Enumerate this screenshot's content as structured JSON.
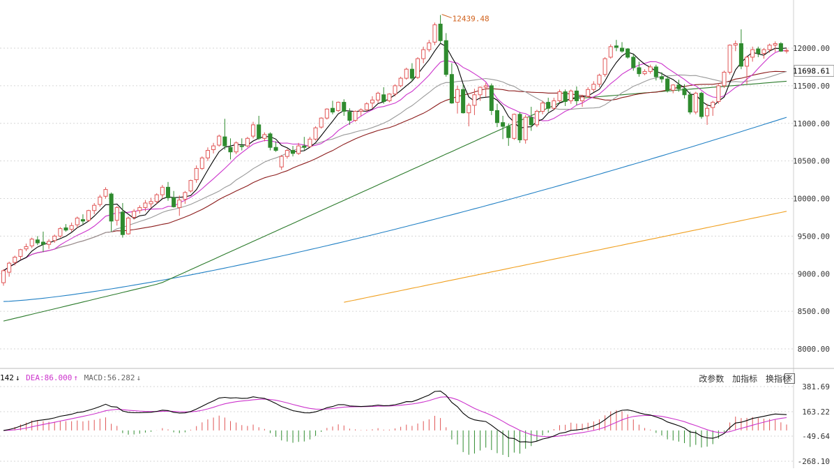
{
  "chart_data": [
    {
      "type": "candlestick",
      "title": "",
      "ylim": [
        7800,
        12500
      ],
      "y_ticks": [
        "12000.00",
        "11500.00",
        "11000.00",
        "10500.00",
        "10000.00",
        "9500.00",
        "9000.00",
        "8500.00",
        "8000.00"
      ],
      "current_price_label": "11698.61",
      "peak_annotation": "12439.48",
      "grid": true,
      "colors": {
        "up": "#e05555",
        "down": "#2e8b2e",
        "ma5": "#000000",
        "ma10": "#cc33cc",
        "ma20": "#999999",
        "ma30": "#8b1a1a",
        "ma60": "#2a7a2a",
        "ma120": "#1f7fc4",
        "ma250": "#f0a020"
      },
      "candles_ohlc": [
        [
          8880,
          9060,
          8840,
          9040
        ],
        [
          9020,
          9160,
          8960,
          9140
        ],
        [
          9150,
          9240,
          9110,
          9220
        ],
        [
          9230,
          9330,
          9190,
          9320
        ],
        [
          9330,
          9400,
          9300,
          9360
        ],
        [
          9370,
          9480,
          9340,
          9460
        ],
        [
          9450,
          9500,
          9380,
          9410
        ],
        [
          9420,
          9560,
          9290,
          9390
        ],
        [
          9390,
          9460,
          9330,
          9430
        ],
        [
          9440,
          9520,
          9410,
          9500
        ],
        [
          9500,
          9620,
          9480,
          9600
        ],
        [
          9610,
          9660,
          9560,
          9580
        ],
        [
          9590,
          9680,
          9560,
          9640
        ],
        [
          9650,
          9760,
          9610,
          9740
        ],
        [
          9720,
          9790,
          9660,
          9700
        ],
        [
          9710,
          9850,
          9690,
          9840
        ],
        [
          9840,
          9940,
          9790,
          9910
        ],
        [
          9920,
          10050,
          9890,
          10020
        ],
        [
          10030,
          10150,
          10000,
          10120
        ],
        [
          10060,
          10080,
          9560,
          9700
        ],
        [
          9710,
          9900,
          9640,
          9880
        ],
        [
          9820,
          9940,
          9480,
          9520
        ],
        [
          9530,
          9760,
          9520,
          9740
        ],
        [
          9750,
          9860,
          9720,
          9830
        ],
        [
          9840,
          9910,
          9800,
          9880
        ],
        [
          9880,
          9980,
          9830,
          9940
        ],
        [
          9930,
          10010,
          9880,
          9960
        ],
        [
          9960,
          10070,
          9930,
          10050
        ],
        [
          10050,
          10180,
          10000,
          10150
        ],
        [
          10150,
          10220,
          9970,
          10010
        ],
        [
          10010,
          10100,
          9880,
          9890
        ],
        [
          9880,
          10040,
          9770,
          9980
        ],
        [
          9990,
          10100,
          9930,
          10080
        ],
        [
          10100,
          10250,
          10080,
          10240
        ],
        [
          10250,
          10440,
          10210,
          10400
        ],
        [
          10400,
          10560,
          10380,
          10540
        ],
        [
          10540,
          10680,
          10500,
          10640
        ],
        [
          10650,
          10740,
          10600,
          10700
        ],
        [
          10710,
          10850,
          10690,
          10830
        ],
        [
          10820,
          11060,
          10650,
          10700
        ],
        [
          10680,
          10800,
          10520,
          10620
        ],
        [
          10620,
          10760,
          10590,
          10740
        ],
        [
          10700,
          10800,
          10640,
          10690
        ],
        [
          10700,
          10820,
          10680,
          10800
        ],
        [
          10830,
          11020,
          10800,
          10980
        ],
        [
          10980,
          11100,
          10780,
          10800
        ],
        [
          10800,
          10880,
          10760,
          10850
        ],
        [
          10860,
          10880,
          10640,
          10680
        ],
        [
          10680,
          10760,
          10620,
          10640
        ],
        [
          10420,
          10580,
          10380,
          10560
        ],
        [
          10560,
          10660,
          10530,
          10640
        ],
        [
          10640,
          10700,
          10560,
          10600
        ],
        [
          10600,
          10740,
          10580,
          10700
        ],
        [
          10700,
          10820,
          10640,
          10680
        ],
        [
          10690,
          10820,
          10680,
          10790
        ],
        [
          10790,
          10960,
          10770,
          10940
        ],
        [
          10950,
          11080,
          10930,
          11070
        ],
        [
          11070,
          11200,
          11050,
          11190
        ],
        [
          11200,
          11300,
          11120,
          11150
        ],
        [
          11170,
          11290,
          11150,
          11280
        ],
        [
          11280,
          11320,
          11100,
          11160
        ],
        [
          11150,
          11200,
          10980,
          11040
        ],
        [
          11040,
          11170,
          11020,
          11160
        ],
        [
          11160,
          11200,
          11100,
          11180
        ],
        [
          11180,
          11280,
          11160,
          11260
        ],
        [
          11270,
          11360,
          11200,
          11310
        ],
        [
          11310,
          11420,
          11270,
          11400
        ],
        [
          11380,
          11480,
          11260,
          11290
        ],
        [
          11300,
          11400,
          11280,
          11390
        ],
        [
          11390,
          11520,
          11360,
          11500
        ],
        [
          11500,
          11620,
          11480,
          11600
        ],
        [
          11600,
          11740,
          11580,
          11720
        ],
        [
          11720,
          11800,
          11560,
          11600
        ],
        [
          11610,
          11880,
          11590,
          11860
        ],
        [
          11860,
          12020,
          11800,
          11980
        ],
        [
          11980,
          12110,
          11950,
          12070
        ],
        [
          12080,
          12340,
          12040,
          12310
        ],
        [
          12320,
          12440,
          12060,
          12100
        ],
        [
          12100,
          12200,
          11620,
          11650
        ],
        [
          11650,
          11800,
          11260,
          11270
        ],
        [
          11280,
          11500,
          11130,
          11450
        ],
        [
          11450,
          11520,
          11130,
          11140
        ],
        [
          11140,
          11270,
          10960,
          11240
        ],
        [
          11240,
          11460,
          11110,
          11380
        ],
        [
          11380,
          11490,
          11300,
          11480
        ],
        [
          11480,
          11540,
          11350,
          11500
        ],
        [
          11500,
          11530,
          11110,
          11170
        ],
        [
          11170,
          11260,
          10950,
          11010
        ],
        [
          11010,
          11100,
          10790,
          10960
        ],
        [
          10960,
          11000,
          10700,
          10810
        ],
        [
          10800,
          11130,
          10780,
          11120
        ],
        [
          11120,
          11150,
          10740,
          10780
        ],
        [
          10780,
          11110,
          10730,
          11080
        ],
        [
          11080,
          11220,
          10900,
          10980
        ],
        [
          10980,
          11180,
          10950,
          11160
        ],
        [
          11160,
          11300,
          11120,
          11270
        ],
        [
          11280,
          11340,
          11150,
          11200
        ],
        [
          11200,
          11340,
          11180,
          11300
        ],
        [
          11300,
          11450,
          11280,
          11420
        ],
        [
          11420,
          11450,
          11230,
          11290
        ],
        [
          11300,
          11450,
          11260,
          11430
        ],
        [
          11430,
          11490,
          11240,
          11300
        ],
        [
          11300,
          11380,
          11220,
          11350
        ],
        [
          11360,
          11480,
          11340,
          11450
        ],
        [
          11450,
          11560,
          11420,
          11520
        ],
        [
          11520,
          11660,
          11480,
          11640
        ],
        [
          11650,
          11880,
          11620,
          11860
        ],
        [
          11880,
          12050,
          11860,
          12020
        ],
        [
          12030,
          12110,
          11960,
          12010
        ],
        [
          12000,
          12080,
          11940,
          11960
        ],
        [
          11990,
          12000,
          11860,
          11880
        ],
        [
          11880,
          11920,
          11700,
          11740
        ],
        [
          11740,
          11820,
          11620,
          11660
        ],
        [
          11660,
          11720,
          11640,
          11690
        ],
        [
          11690,
          11780,
          11660,
          11750
        ],
        [
          11750,
          11780,
          11570,
          11620
        ],
        [
          11620,
          11680,
          11540,
          11590
        ],
        [
          11590,
          11630,
          11410,
          11440
        ],
        [
          11440,
          11520,
          11400,
          11510
        ],
        [
          11510,
          11580,
          11420,
          11460
        ],
        [
          11460,
          11520,
          11330,
          11380
        ],
        [
          11380,
          11420,
          11120,
          11150
        ],
        [
          11150,
          11420,
          11120,
          11400
        ],
        [
          11400,
          11420,
          11060,
          11090
        ],
        [
          11100,
          11260,
          10980,
          11200
        ],
        [
          11210,
          11300,
          11100,
          11280
        ],
        [
          11290,
          11520,
          11260,
          11500
        ],
        [
          11500,
          11700,
          11470,
          11680
        ],
        [
          11680,
          12050,
          11650,
          12040
        ],
        [
          12040,
          12100,
          11960,
          12060
        ],
        [
          12060,
          12250,
          11720,
          11760
        ],
        [
          11760,
          11900,
          11520,
          11880
        ],
        [
          11880,
          12020,
          11820,
          11980
        ],
        [
          11990,
          12020,
          11880,
          11930
        ],
        [
          11930,
          12000,
          11860,
          11980
        ],
        [
          11980,
          12060,
          11940,
          12040
        ],
        [
          12040,
          12090,
          11950,
          12060
        ],
        [
          12060,
          12080,
          11950,
          11960
        ],
        [
          11960,
          12000,
          11930,
          11970
        ]
      ],
      "ma_series": [
        {
          "name": "",
          "values": []
        }
      ]
    },
    {
      "type": "macd",
      "labels": {
        "dif": "142",
        "dea": "DEA:86.000",
        "macd": "MACD:56.282"
      },
      "ylim": [
        -268.1,
        420
      ],
      "y_ticks": [
        "381.69",
        "163.22",
        "-49.64",
        "-268.10"
      ],
      "arrows": {
        "dif": "↓",
        "dea": "↑",
        "macd": "↓"
      }
    }
  ],
  "toolbar": {
    "modify_params": "改参数",
    "add_indicator": "加指标",
    "switch_indicator": "换指标",
    "close": "✕"
  }
}
